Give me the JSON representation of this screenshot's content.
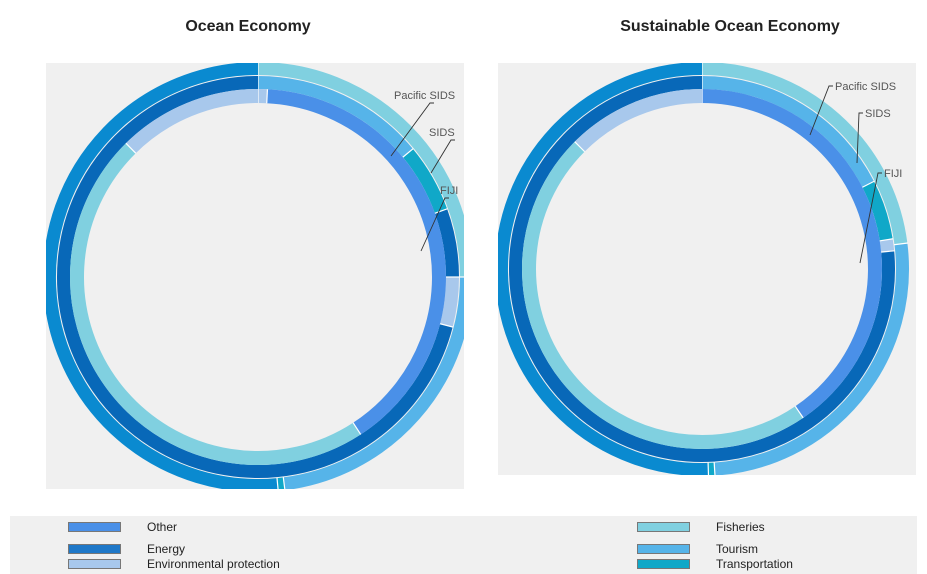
{
  "chart_data": [
    {
      "type": "pie",
      "title": "Ocean Economy",
      "rings": [
        {
          "name": "Pacific SIDS",
          "values": [
            {
              "category": "Fisheries",
              "value": 25
            },
            {
              "category": "Tourism",
              "value": 23
            },
            {
              "category": "Transportation",
              "value": 0.5
            },
            {
              "category": "Energy",
              "value": 51.5
            }
          ]
        },
        {
          "name": "SIDS",
          "values": [
            {
              "category": "Tourism",
              "value": 14
            },
            {
              "category": "Transportation",
              "value": 5.5
            },
            {
              "category": "Energy",
              "value": 5.5
            },
            {
              "category": "Environmental protection",
              "value": 4
            },
            {
              "category": "Energy",
              "value": 71
            }
          ]
        },
        {
          "name": "FIJI",
          "values": [
            {
              "category": "Environmental protection",
              "value": 0.8
            },
            {
              "category": "Other",
              "value": 40
            },
            {
              "category": "Fisheries",
              "value": 46.8
            },
            {
              "category": "Environmental protection",
              "value": 12.4
            }
          ]
        }
      ],
      "annotations": [
        "Pacific SIDS",
        "SIDS",
        "FIJI"
      ]
    },
    {
      "type": "pie",
      "title": "Sustainable Ocean Economy",
      "rings": [
        {
          "name": "Pacific SIDS",
          "values": [
            {
              "category": "Fisheries",
              "value": 23
            },
            {
              "category": "Tourism",
              "value": 26
            },
            {
              "category": "Transportation",
              "value": 0.5
            },
            {
              "category": "Energy",
              "value": 50.5
            }
          ]
        },
        {
          "name": "SIDS",
          "values": [
            {
              "category": "Tourism",
              "value": 17.5
            },
            {
              "category": "Transportation",
              "value": 5
            },
            {
              "category": "Environmental protection",
              "value": 1
            },
            {
              "category": "Energy",
              "value": 76.5
            }
          ]
        },
        {
          "name": "FIJI",
          "values": [
            {
              "category": "Other",
              "value": 40.5
            },
            {
              "category": "Fisheries",
              "value": 47
            },
            {
              "category": "Environmental protection",
              "value": 12.5
            }
          ]
        }
      ],
      "annotations": [
        "Pacific SIDS",
        "SIDS",
        "FIJI"
      ]
    }
  ],
  "legend": {
    "items": [
      {
        "label": "Other",
        "color": "#4a90e8"
      },
      {
        "label": "Energy",
        "color": "#1f78c8"
      },
      {
        "label": "Environmental protection",
        "color": "#a8c8ec"
      },
      {
        "label": "Fisheries",
        "color": "#80d0e0"
      },
      {
        "label": "Tourism",
        "color": "#56b4e9"
      },
      {
        "label": "Transportation",
        "color": "#10a8c8"
      }
    ]
  },
  "colors": {
    "Other": "#4a90e8",
    "Energy": "#1f78c8",
    "Environmental protection": "#a8c8ec",
    "Fisheries": "#80d0e0",
    "Tourism": "#56b4e9",
    "Transportation": "#10a8c8",
    "outer_energy": "#0a8ad0",
    "outer_env": "#86a8d8",
    "mid_energy": "#0868b8"
  }
}
